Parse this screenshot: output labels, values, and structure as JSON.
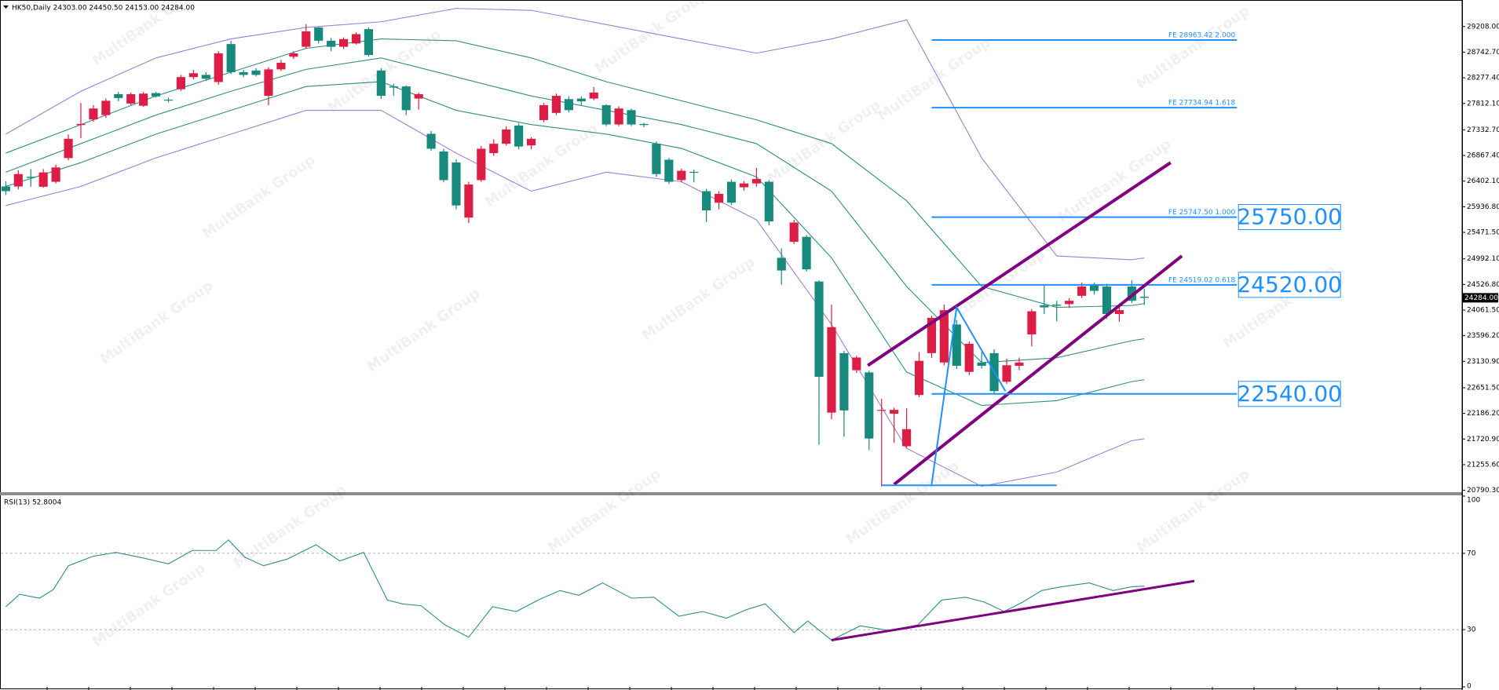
{
  "chart_data": {
    "type": "candlestick",
    "title": "HK50,Daily  24303.00 24450.50 24153.00 24284.00",
    "watermark": "MultiBank Group",
    "up_color": "#dc1e46",
    "down_color": "#17897d",
    "xlim": [
      -0.4,
      116.4
    ],
    "ylim": [
      20756,
      29675
    ],
    "yticks": [
      {
        "value": 29208,
        "label": "29208.00"
      },
      {
        "value": 28742.7,
        "label": "28742.70"
      },
      {
        "value": 28277.4,
        "label": "28277.40"
      },
      {
        "value": 27812.1,
        "label": "27812.10"
      },
      {
        "value": 27332.7,
        "label": "27332.70"
      },
      {
        "value": 26867.4,
        "label": "26867.40"
      },
      {
        "value": 26402.1,
        "label": "26402.10"
      },
      {
        "value": 25936.8,
        "label": "25936.80"
      },
      {
        "value": 25471.5,
        "label": "25471.50"
      },
      {
        "value": 24992.1,
        "label": "24992.10"
      },
      {
        "value": 24526.8,
        "label": "24526.80"
      },
      {
        "value": 24061.5,
        "label": "24061.50"
      },
      {
        "value": 23596.2,
        "label": "23596.20"
      },
      {
        "value": 23130.9,
        "label": "23130.90"
      },
      {
        "value": 22651.5,
        "label": "22651.50"
      },
      {
        "value": 22186.2,
        "label": "22186.20"
      },
      {
        "value": 21720.9,
        "label": "21720.90"
      },
      {
        "value": 21255.6,
        "label": "21255.60"
      },
      {
        "value": 20790.3,
        "label": "20790.30"
      }
    ],
    "last_price": {
      "value": 24284,
      "label": "24284.00"
    },
    "open": [
      26305,
      26305,
      26480,
      26300,
      26390,
      26820,
      27420,
      27520,
      27600,
      27980,
      27810,
      27770,
      28000,
      27880,
      28070,
      28290,
      28330,
      28200,
      28890,
      28380,
      28410,
      27950,
      28430,
      28660,
      28840,
      29190,
      28950,
      28840,
      28900,
      29160,
      28410,
      28120,
      28120,
      27900,
      27260,
      26940,
      26740,
      25740,
      26420,
      26910,
      27080,
      27410,
      27050,
      27510,
      27640,
      27890,
      27900,
      27900,
      27780,
      27430,
      27690,
      27440,
      27080,
      26790,
      26420,
      26570,
      26220,
      26010,
      26390,
      26290,
      26360,
      26390,
      25010,
      25300,
      25390,
      24580,
      22200,
      23280,
      22970,
      22930,
      22240,
      22180,
      21590,
      22520,
      23280,
      23110,
      23800,
      22940,
      23110,
      23280,
      22760,
      23050,
      23620,
      24150,
      24160,
      24170,
      24320,
      24510,
      24490,
      23990,
      24490,
      24303
    ],
    "high": [
      26400,
      26600,
      26620,
      26620,
      26700,
      27250,
      27820,
      27780,
      27900,
      28020,
      28010,
      28020,
      28020,
      27920,
      28330,
      28420,
      28380,
      28760,
      28950,
      28420,
      28450,
      28470,
      28600,
      28760,
      29250,
      29200,
      29000,
      29010,
      29100,
      29190,
      28450,
      28170,
      28140,
      28010,
      27310,
      26990,
      26800,
      26390,
      27040,
      27160,
      27400,
      27450,
      27200,
      27820,
      27990,
      27940,
      27940,
      28110,
      27800,
      27760,
      27720,
      27460,
      27120,
      26820,
      26630,
      26610,
      26260,
      26220,
      26430,
      26400,
      26640,
      26420,
      25180,
      25700,
      25420,
      24600,
      24160,
      23320,
      23230,
      22960,
      22450,
      22290,
      22280,
      23300,
      23960,
      24160,
      23880,
      23490,
      23310,
      23350,
      23180,
      23200,
      24080,
      24530,
      24230,
      24280,
      24560,
      24560,
      24540,
      24130,
      24600,
      24450.5
    ],
    "low": [
      26150,
      26250,
      26300,
      26280,
      26360,
      26780,
      27180,
      27480,
      27550,
      27850,
      27780,
      27750,
      27920,
      27830,
      28040,
      28250,
      28220,
      28150,
      28350,
      28290,
      28300,
      27780,
      28400,
      28620,
      28800,
      28900,
      28760,
      28800,
      28880,
      28660,
      27890,
      27950,
      27600,
      27700,
      26950,
      26380,
      25890,
      25640,
      26390,
      26860,
      27050,
      26980,
      26980,
      27470,
      27600,
      27650,
      27780,
      27870,
      27400,
      27400,
      27400,
      27380,
      26480,
      26350,
      26380,
      26380,
      25660,
      25890,
      25970,
      26230,
      26300,
      25600,
      24520,
      25260,
      24760,
      21620,
      22080,
      21760,
      22920,
      21520,
      20860,
      21650,
      21560,
      22480,
      23190,
      23060,
      22990,
      22880,
      23000,
      22550,
      22720,
      22970,
      23400,
      23990,
      23860,
      24100,
      24280,
      24340,
      23900,
      23850,
      24190,
      24153
    ],
    "close": [
      26220,
      26530,
      26460,
      26560,
      26650,
      27170,
      27440,
      27720,
      27860,
      27910,
      27980,
      27990,
      27940,
      27870,
      28290,
      28360,
      28260,
      28720,
      28380,
      28330,
      28330,
      28430,
      28550,
      28720,
      29120,
      28950,
      28840,
      28980,
      29070,
      28690,
      27950,
      28100,
      27690,
      27980,
      26990,
      26420,
      25960,
      26340,
      26990,
      27080,
      27340,
      27030,
      27170,
      27780,
      27950,
      27690,
      27850,
      28010,
      27430,
      27720,
      27430,
      27420,
      26530,
      26390,
      26590,
      26560,
      25870,
      26170,
      26010,
      26360,
      26440,
      25670,
      24780,
      25650,
      24800,
      22850,
      23750,
      22240,
      23200,
      21730,
      22250,
      22250,
      21900,
      23140,
      23920,
      24060,
      23050,
      23450,
      23050,
      22590,
      23060,
      23110,
      24040,
      24110,
      24140,
      24230,
      24490,
      24410,
      23990,
      24060,
      24230,
      24284
    ],
    "indicators": [
      {
        "color": "#9a7fd6",
        "x": [
          0,
          6,
          12,
          18,
          24,
          30,
          36,
          42,
          48,
          54,
          60,
          66,
          72,
          78,
          84,
          90,
          91
        ],
        "values": [
          27255,
          28033,
          28638,
          28983,
          29191,
          29294,
          29536,
          29502,
          29243,
          28983,
          28724,
          28983,
          29329,
          26824,
          25044,
          24974,
          25009
        ]
      },
      {
        "color": "#2f8f80",
        "x": [
          0,
          6,
          12,
          18,
          24,
          30,
          36,
          42,
          48,
          54,
          60,
          66,
          72,
          78,
          84,
          90,
          91
        ],
        "values": [
          26910,
          27428,
          27947,
          28379,
          28811,
          28983,
          28949,
          28638,
          28206,
          27860,
          27515,
          27083,
          26046,
          24491,
          24110,
          24145,
          24179
        ]
      },
      {
        "color": "#2f8f80",
        "x": [
          0,
          6,
          12,
          18,
          24,
          30,
          36,
          42,
          48,
          54,
          60,
          66,
          72,
          78,
          84,
          90,
          91
        ],
        "values": [
          26564,
          27083,
          27601,
          28033,
          28430,
          28638,
          28292,
          27947,
          27687,
          27428,
          27083,
          26219,
          24491,
          23108,
          23195,
          23506,
          23540
        ]
      },
      {
        "color": "#2f8f80",
        "x": [
          0,
          6,
          12,
          18,
          24,
          30,
          36,
          42,
          48,
          54,
          60,
          66,
          72,
          78,
          84,
          90,
          91
        ],
        "values": [
          26305,
          26737,
          27255,
          27687,
          28119,
          28206,
          27687,
          27428,
          27255,
          26996,
          26478,
          25009,
          22935,
          22330,
          22417,
          22763,
          22797
        ]
      },
      {
        "color": "#9a7fd6",
        "x": [
          0,
          6,
          12,
          18,
          24,
          30,
          36,
          42,
          48,
          54,
          60,
          66,
          72,
          78,
          84,
          90,
          91
        ],
        "values": [
          25959,
          26305,
          26824,
          27255,
          27687,
          27687,
          26910,
          26219,
          26564,
          26391,
          25700,
          23799,
          21553,
          20862,
          21121,
          21691,
          21726
        ]
      }
    ],
    "fib_x": [
      74,
      98.4
    ],
    "fib_color": "#1e90ff",
    "fib_levels": [
      {
        "value": 28963.42,
        "label": "FE 28963.42  2.000"
      },
      {
        "value": 27734.94,
        "label": "FE 27734.94  1.618"
      },
      {
        "value": 25747.5,
        "label": "FE 25747.50  1.000"
      },
      {
        "value": 24519.02,
        "label": "FE 24519.02  0.618"
      }
    ],
    "price_boxes": [
      {
        "value": 25750,
        "label": "25750.00"
      },
      {
        "value": 24520,
        "label": "24520.00"
      },
      {
        "value": 22540,
        "label": "22540.00"
      }
    ],
    "trendlines": [
      {
        "color": "#800080",
        "x": [
          68.9,
          93.1
        ],
        "y": [
          23056,
          26737
        ]
      },
      {
        "color": "#800080",
        "x": [
          71,
          94
        ],
        "y": [
          20897,
          25044
        ]
      },
      {
        "color": "#1e90ff",
        "x": [
          74,
          76,
          79.9
        ],
        "y": [
          20896,
          24110,
          22590
        ]
      },
      {
        "color": "#1e90ff",
        "x": [
          70,
          84
        ],
        "y": [
          20880,
          20880
        ]
      },
      {
        "color": "#1e90ff",
        "x": [
          74,
          98.4
        ],
        "y": [
          22540,
          22540
        ]
      }
    ],
    "rsi": {
      "title": "RSI(13) 52.8004",
      "color": "#2e8b8b",
      "ylim": [
        0,
        100
      ],
      "yticks": [
        0,
        30,
        70,
        100
      ],
      "levels": [
        30,
        70
      ],
      "x": [
        0,
        1.1,
        2.7,
        3.8,
        5,
        7,
        8.8,
        11,
        13,
        14.9,
        16.8,
        17.8,
        19.1,
        20.6,
        22.5,
        24.8,
        26.7,
        28.6,
        30.5,
        31.7,
        33.2,
        35.1,
        37,
        38.9,
        40.8,
        42.7,
        44.3,
        45.8,
        47.7,
        50,
        51.8,
        53.8,
        55.7,
        57.6,
        59.2,
        60.7,
        63,
        64.1,
        66,
        68.3,
        70.6,
        72.9,
        74.8,
        76.7,
        78.2,
        79.8,
        81.3,
        82.8,
        84.4,
        86.6,
        88.5,
        90,
        91
      ],
      "values": [
        42,
        48.5,
        46.5,
        51,
        63.5,
        68.5,
        70.5,
        67.5,
        64.5,
        71.5,
        71.5,
        77,
        68,
        63.5,
        67,
        74.5,
        66,
        70.5,
        45.5,
        43.5,
        42.5,
        32.5,
        26,
        42,
        39.5,
        46,
        50.5,
        48,
        54.5,
        46.5,
        47,
        37,
        39.5,
        36,
        40.5,
        43.5,
        28.5,
        34.5,
        24.5,
        32,
        29.5,
        32.5,
        45.5,
        47,
        44.5,
        39.5,
        44.5,
        50.5,
        52.5,
        54.5,
        50.5,
        52.5,
        52.8
      ],
      "trendline": {
        "color": "#800080",
        "x": [
          66,
          95
        ],
        "y": [
          24.5,
          55.5
        ]
      }
    }
  }
}
